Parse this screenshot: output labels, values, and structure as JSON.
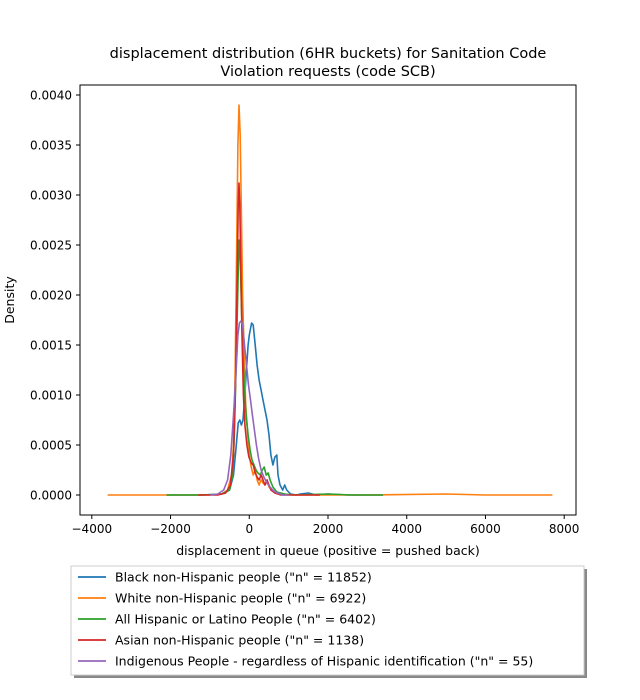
{
  "chart_data": {
    "type": "line",
    "title_line1": "displacement distribution (6HR buckets) for Sanitation Code",
    "title_line2": "Violation requests (code SCB)",
    "xlabel": "displacement in queue (positive = pushed back)",
    "ylabel": "Density",
    "xlim": [
      -4300,
      8300
    ],
    "ylim": [
      -0.0002,
      0.0041
    ],
    "xticks": [
      -4000,
      -2000,
      0,
      2000,
      4000,
      6000,
      8000
    ],
    "xtick_labels": [
      "−4000",
      "−2000",
      "0",
      "2000",
      "4000",
      "6000",
      "8000"
    ],
    "yticks": [
      0.0,
      0.0005,
      0.001,
      0.0015,
      0.002,
      0.0025,
      0.003,
      0.0035,
      0.004
    ],
    "ytick_labels": [
      "0.0000",
      "0.0005",
      "0.0010",
      "0.0015",
      "0.0020",
      "0.0025",
      "0.0030",
      "0.0035",
      "0.0040"
    ],
    "grid": false,
    "legend_position": "below plot",
    "series": [
      {
        "name": "Black non-Hispanic people (\"n\" = 11852)",
        "color": "#1f77b4",
        "points": [
          [
            -2100,
            0.0
          ],
          [
            -1200,
            0.0
          ],
          [
            -700,
            1e-05
          ],
          [
            -500,
            5e-05
          ],
          [
            -400,
            0.0002
          ],
          [
            -330,
            0.0005
          ],
          [
            -280,
            0.00072
          ],
          [
            -240,
            0.00075
          ],
          [
            -200,
            0.0007
          ],
          [
            -160,
            0.00075
          ],
          [
            -120,
            0.00095
          ],
          [
            -80,
            0.0012
          ],
          [
            -30,
            0.0015
          ],
          [
            0,
            0.0016
          ],
          [
            60,
            0.00172
          ],
          [
            100,
            0.0017
          ],
          [
            150,
            0.0015
          ],
          [
            200,
            0.0013
          ],
          [
            250,
            0.00115
          ],
          [
            300,
            0.00105
          ],
          [
            350,
            0.00095
          ],
          [
            400,
            0.00085
          ],
          [
            450,
            0.00075
          ],
          [
            500,
            0.0006
          ],
          [
            550,
            0.0004
          ],
          [
            600,
            0.0003
          ],
          [
            650,
            0.00038
          ],
          [
            700,
            0.0004
          ],
          [
            730,
            0.0002
          ],
          [
            780,
            0.0001
          ],
          [
            850,
            5e-05
          ],
          [
            900,
            0.0001
          ],
          [
            950,
            5e-05
          ],
          [
            1050,
            1e-05
          ],
          [
            1200,
            0.0
          ],
          [
            1300,
            1e-05
          ],
          [
            1500,
            2e-05
          ],
          [
            1700,
            0.0
          ],
          [
            2000,
            1e-05
          ],
          [
            2500,
            0.0
          ],
          [
            3400,
            0.0
          ]
        ]
      },
      {
        "name": "White non-Hispanic people (\"n\" = 6922)",
        "color": "#ff7f0e",
        "points": [
          [
            -3600,
            0.0
          ],
          [
            -2000,
            0.0
          ],
          [
            -1000,
            0.0
          ],
          [
            -700,
            1e-05
          ],
          [
            -550,
            5e-05
          ],
          [
            -450,
            0.0002
          ],
          [
            -400,
            0.0005
          ],
          [
            -360,
            0.0012
          ],
          [
            -320,
            0.0025
          ],
          [
            -290,
            0.0035
          ],
          [
            -260,
            0.0039
          ],
          [
            -230,
            0.0036
          ],
          [
            -200,
            0.0028
          ],
          [
            -170,
            0.002
          ],
          [
            -130,
            0.0014
          ],
          [
            -90,
            0.0009
          ],
          [
            -40,
            0.0006
          ],
          [
            0,
            0.0004
          ],
          [
            50,
            0.00028
          ],
          [
            100,
            0.0002
          ],
          [
            150,
            0.00025
          ],
          [
            200,
            0.00015
          ],
          [
            250,
            0.0001
          ],
          [
            300,
            0.00015
          ],
          [
            350,
            0.00012
          ],
          [
            400,
            0.0001
          ],
          [
            450,
            0.00015
          ],
          [
            500,
            8e-05
          ],
          [
            600,
            4e-05
          ],
          [
            800,
            1e-05
          ],
          [
            1200,
            0.0
          ],
          [
            3000,
            0.0
          ],
          [
            5000,
            1e-05
          ],
          [
            6000,
            0.0
          ],
          [
            7700,
            0.0
          ]
        ]
      },
      {
        "name": "All Hispanic or Latino People (\"n\" = 6402)",
        "color": "#2ca02c",
        "points": [
          [
            -2100,
            0.0
          ],
          [
            -1200,
            0.0
          ],
          [
            -700,
            1e-05
          ],
          [
            -500,
            5e-05
          ],
          [
            -420,
            0.0002
          ],
          [
            -380,
            0.0006
          ],
          [
            -340,
            0.0012
          ],
          [
            -300,
            0.0019
          ],
          [
            -270,
            0.0024
          ],
          [
            -250,
            0.00255
          ],
          [
            -225,
            0.0023
          ],
          [
            -200,
            0.0019
          ],
          [
            -170,
            0.0015
          ],
          [
            -130,
            0.0011
          ],
          [
            -80,
            0.0008
          ],
          [
            -30,
            0.0006
          ],
          [
            20,
            0.00045
          ],
          [
            70,
            0.00035
          ],
          [
            120,
            0.0003
          ],
          [
            170,
            0.00025
          ],
          [
            220,
            0.00022
          ],
          [
            280,
            0.0002
          ],
          [
            330,
            0.00025
          ],
          [
            380,
            0.00028
          ],
          [
            430,
            0.0002
          ],
          [
            480,
            0.00022
          ],
          [
            530,
            0.00015
          ],
          [
            600,
            8e-05
          ],
          [
            700,
            3e-05
          ],
          [
            900,
            1e-05
          ],
          [
            1100,
            0.0
          ],
          [
            2000,
            1e-05
          ],
          [
            2600,
            0.0
          ],
          [
            3400,
            0.0
          ]
        ]
      },
      {
        "name": "Asian non-Hispanic people (\"n\" = 1138)",
        "color": "#d62728",
        "points": [
          [
            -1300,
            0.0
          ],
          [
            -800,
            0.0
          ],
          [
            -600,
            2e-05
          ],
          [
            -480,
            0.0001
          ],
          [
            -400,
            0.0004
          ],
          [
            -350,
            0.0011
          ],
          [
            -310,
            0.0021
          ],
          [
            -280,
            0.0029
          ],
          [
            -260,
            0.00312
          ],
          [
            -240,
            0.0029
          ],
          [
            -215,
            0.0023
          ],
          [
            -185,
            0.0016
          ],
          [
            -150,
            0.001
          ],
          [
            -110,
            0.0007
          ],
          [
            -60,
            0.0005
          ],
          [
            -10,
            0.00038
          ],
          [
            50,
            0.00032
          ],
          [
            100,
            0.0003
          ],
          [
            150,
            0.00022
          ],
          [
            200,
            0.00018
          ],
          [
            250,
            0.00015
          ],
          [
            300,
            0.0002
          ],
          [
            350,
            0.00015
          ],
          [
            400,
            0.0001
          ],
          [
            450,
            0.00015
          ],
          [
            500,
            0.0001
          ],
          [
            550,
            5e-05
          ],
          [
            650,
            2e-05
          ],
          [
            800,
            0.0
          ],
          [
            1200,
            0.0
          ],
          [
            1800,
            0.0
          ]
        ]
      },
      {
        "name": "Indigenous People - regardless of Hispanic identification (\"n\" = 55)",
        "color": "#9467bd",
        "points": [
          [
            -1000,
            0.0
          ],
          [
            -800,
            1e-05
          ],
          [
            -650,
            5e-05
          ],
          [
            -550,
            0.00015
          ],
          [
            -470,
            0.0004
          ],
          [
            -400,
            0.0008
          ],
          [
            -340,
            0.0012
          ],
          [
            -290,
            0.0016
          ],
          [
            -250,
            0.00172
          ],
          [
            -210,
            0.00174
          ],
          [
            -170,
            0.0017
          ],
          [
            -120,
            0.0015
          ],
          [
            -70,
            0.0013
          ],
          [
            -20,
            0.0011
          ],
          [
            30,
            0.00095
          ],
          [
            80,
            0.0008
          ],
          [
            130,
            0.00065
          ],
          [
            180,
            0.0005
          ],
          [
            240,
            0.00036
          ],
          [
            300,
            0.00025
          ],
          [
            370,
            0.00018
          ],
          [
            450,
            0.00012
          ],
          [
            530,
            8e-05
          ],
          [
            620,
            4e-05
          ],
          [
            720,
            2e-05
          ],
          [
            850,
            0.0
          ],
          [
            1000,
            0.0
          ]
        ]
      }
    ]
  }
}
